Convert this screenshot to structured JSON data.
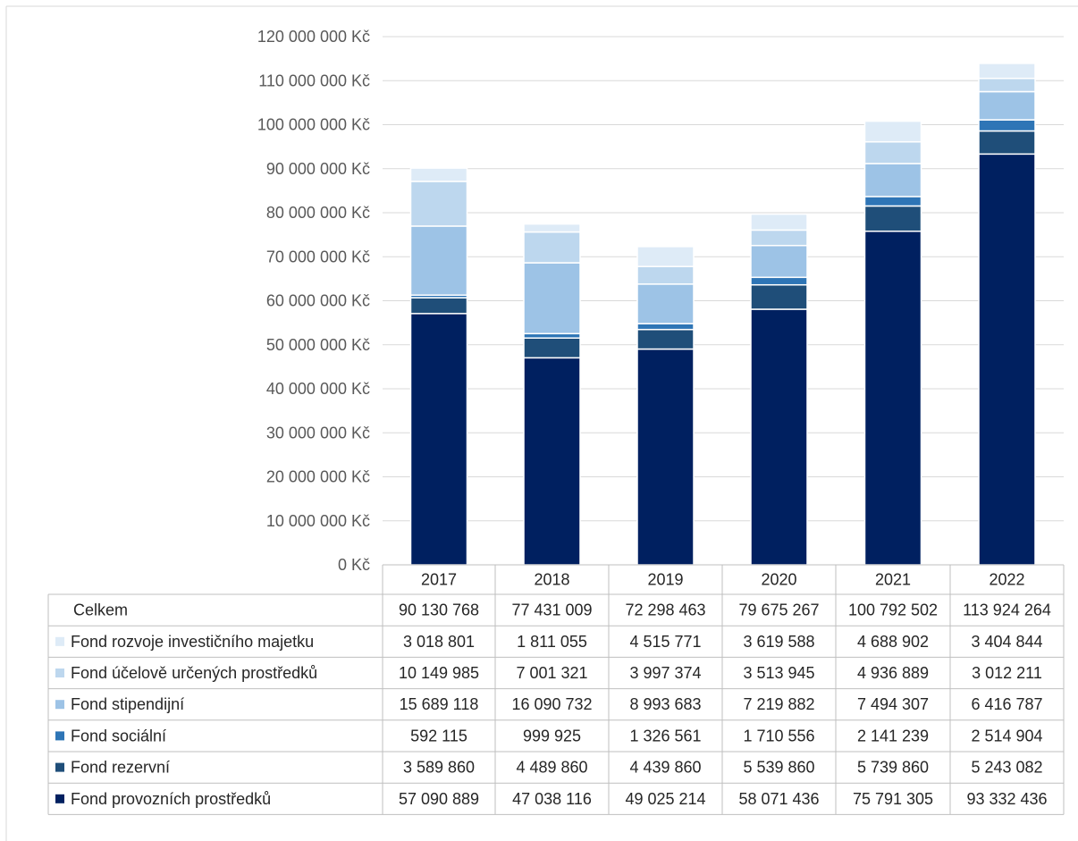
{
  "chart_data": {
    "type": "bar",
    "stacked": true,
    "currency_suffix": " Kč",
    "categories": [
      "2017",
      "2018",
      "2019",
      "2020",
      "2021",
      "2022"
    ],
    "ylim": [
      0,
      120000000
    ],
    "ytick_step": 10000000,
    "ytick_labels": [
      "0 Kč",
      "10 000 000 Kč",
      "20 000 000 Kč",
      "30 000 000 Kč",
      "40 000 000 Kč",
      "50 000 000 Kč",
      "60 000 000 Kč",
      "70 000 000 Kč",
      "80 000 000 Kč",
      "90 000 000 Kč",
      "100 000 000 Kč",
      "110 000 000 Kč",
      "120 000 000 Kč"
    ],
    "grid": true,
    "legend": "data-table",
    "totals": {
      "name": "Celkem",
      "values": [
        90130768,
        77431009,
        72298463,
        79675267,
        100792502,
        113924264
      ],
      "labels": [
        "90 130 768",
        "77 431 009",
        "72 298 463",
        "79 675 267",
        "100 792 502",
        "113 924 264"
      ]
    },
    "series": [
      {
        "name": "Fond provozních prostředků",
        "color": "#002060",
        "values": [
          57090889,
          47038116,
          49025214,
          58071436,
          75791305,
          93332436
        ],
        "labels": [
          "57 090 889",
          "47 038 116",
          "49 025 214",
          "58 071 436",
          "75 791 305",
          "93 332 436"
        ]
      },
      {
        "name": "Fond rezervní",
        "color": "#1f4e79",
        "values": [
          3589860,
          4489860,
          4439860,
          5539860,
          5739860,
          5243082
        ],
        "labels": [
          "3 589 860",
          "4 489 860",
          "4 439 860",
          "5 539 860",
          "5 739 860",
          "5 243 082"
        ]
      },
      {
        "name": "Fond sociální",
        "color": "#2e75b6",
        "values": [
          592115,
          999925,
          1326561,
          1710556,
          2141239,
          2514904
        ],
        "labels": [
          "592 115",
          "999 925",
          "1 326 561",
          "1 710 556",
          "2 141 239",
          "2 514 904"
        ]
      },
      {
        "name": "Fond stipendijní",
        "color": "#9dc3e6",
        "values": [
          15689118,
          16090732,
          8993683,
          7219882,
          7494307,
          6416787
        ],
        "labels": [
          "15 689 118",
          "16 090 732",
          "8 993 683",
          "7 219 882",
          "7 494 307",
          "6 416 787"
        ]
      },
      {
        "name": "Fond účelově určených prostředků",
        "color": "#bdd7ee",
        "values": [
          10149985,
          7001321,
          3997374,
          3513945,
          4936889,
          3012211
        ],
        "labels": [
          "10 149 985",
          "7 001 321",
          "3 997 374",
          "3 513 945",
          "4 936 889",
          "3 012 211"
        ]
      },
      {
        "name": "Fond rozvoje investičního majetku",
        "color": "#deebf7",
        "values": [
          3018801,
          1811055,
          4515771,
          3619588,
          4688902,
          3404844
        ],
        "labels": [
          "3 018 801",
          "1 811 055",
          "4 515 771",
          "3 619 588",
          "4 688 902",
          "3 404 844"
        ]
      }
    ]
  }
}
